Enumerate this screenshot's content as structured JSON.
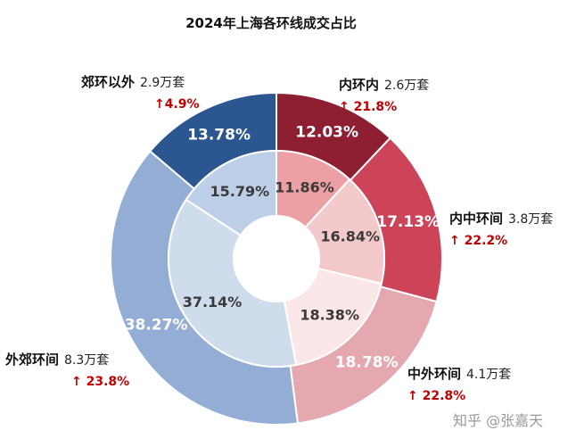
{
  "title": "2024年上海各环线成交占比",
  "watermark": "知乎 @张嘉天",
  "colors": {
    "ring_stroke": "#ffffff",
    "outer_pct_text": "#ffffff",
    "inner_pct_text": "#3a3a3a",
    "change_text": "#c00000"
  },
  "chart_data": {
    "type": "nested-donut",
    "title": "2024年上海各环线成交占比",
    "segments": [
      {
        "name": "内环内",
        "volume": "2.6万套",
        "change": "↑ 21.8%",
        "outer_pct": 12.03,
        "inner_pct": 11.86,
        "outer_color": "#8e1f33",
        "inner_color": "#eca0a4"
      },
      {
        "name": "内中环间",
        "volume": "3.8万套",
        "change": "↑ 22.2%",
        "outer_pct": 17.13,
        "inner_pct": 16.84,
        "outer_color": "#cd4358",
        "inner_color": "#f4c9cc"
      },
      {
        "name": "中外环间",
        "volume": "4.1万套",
        "change": "↑ 22.8%",
        "outer_pct": 18.78,
        "inner_pct": 18.38,
        "outer_color": "#e5a8b0",
        "inner_color": "#fbe6e8"
      },
      {
        "name": "外郊环间",
        "volume": "8.3万套",
        "change": "↑ 23.8%",
        "outer_pct": 38.27,
        "inner_pct": 37.14,
        "outer_color": "#93add4",
        "inner_color": "#cfdcec"
      },
      {
        "name": "郊环以外",
        "volume": "2.9万套",
        "change": "↑4.9%",
        "outer_pct": 13.78,
        "inner_pct": 15.79,
        "outer_color": "#2c568f",
        "inner_color": "#bdcfe6"
      }
    ]
  }
}
